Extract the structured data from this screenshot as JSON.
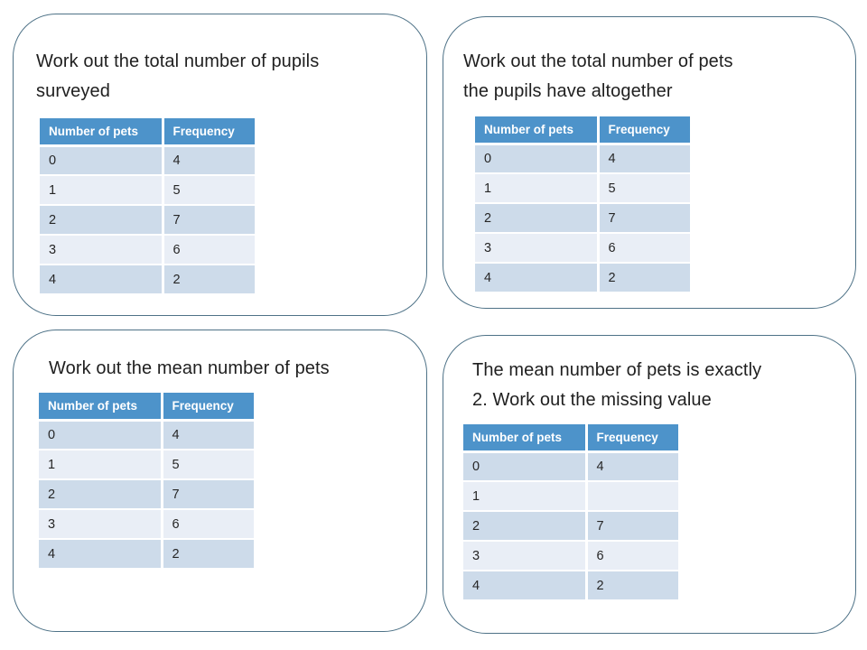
{
  "panels": [
    {
      "name": "total-pupils",
      "title": "Work out the total number of pupils\nsurveyed",
      "table": {
        "headers": [
          "Number of pets",
          "Frequency"
        ],
        "rows": [
          [
            "0",
            "4"
          ],
          [
            "1",
            "5"
          ],
          [
            "2",
            "7"
          ],
          [
            "3",
            "6"
          ],
          [
            "4",
            "2"
          ]
        ]
      }
    },
    {
      "name": "total-pets",
      "title": "Work out the total number of pets\nthe pupils have altogether",
      "table": {
        "headers": [
          "Number of pets",
          "Frequency"
        ],
        "rows": [
          [
            "0",
            "4"
          ],
          [
            "1",
            "5"
          ],
          [
            "2",
            "7"
          ],
          [
            "3",
            "6"
          ],
          [
            "4",
            "2"
          ]
        ]
      }
    },
    {
      "name": "mean-pets",
      "title": "Work out the mean number of pets",
      "table": {
        "headers": [
          "Number of pets",
          "Frequency"
        ],
        "rows": [
          [
            "0",
            "4"
          ],
          [
            "1",
            "5"
          ],
          [
            "2",
            "7"
          ],
          [
            "3",
            "6"
          ],
          [
            "4",
            "2"
          ]
        ]
      }
    },
    {
      "name": "missing-value",
      "title": "The mean number of pets is exactly\n2. Work out the missing value",
      "table": {
        "headers": [
          "Number of pets",
          "Frequency"
        ],
        "rows": [
          [
            "0",
            "4"
          ],
          [
            "1",
            ""
          ],
          [
            "2",
            "7"
          ],
          [
            "3",
            "6"
          ],
          [
            "4",
            "2"
          ]
        ]
      }
    }
  ],
  "colors": {
    "table_header_bg": "#4d93ca",
    "row_band_dark": "#cddbea",
    "row_band_light": "#e9eef6",
    "panel_border": "#4e7287",
    "header_text": "#ffffff",
    "body_text": "#262626",
    "title_text": "#1f1f1f"
  }
}
